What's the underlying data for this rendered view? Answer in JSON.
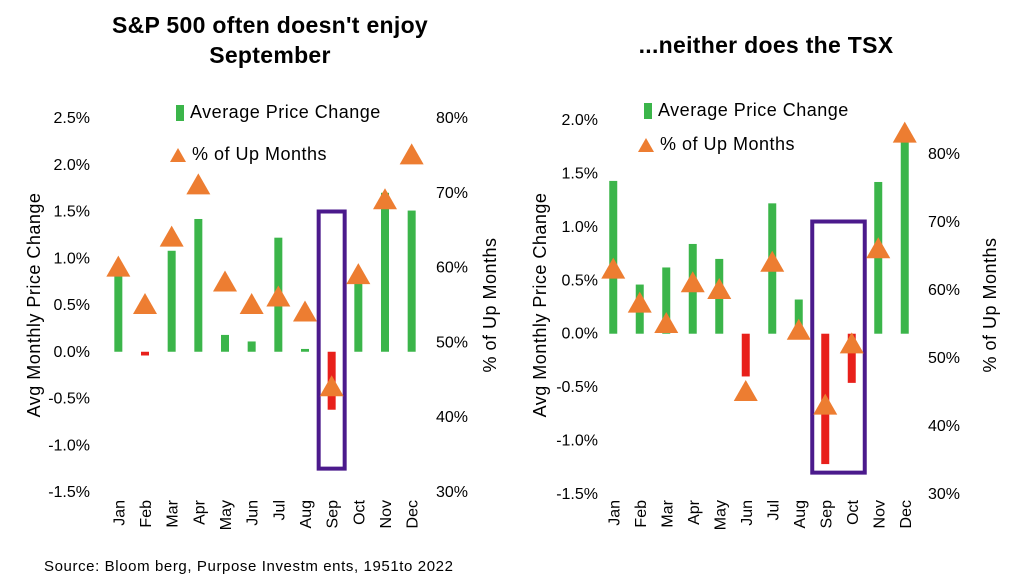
{
  "source": "Source: Bloom berg, Purpose Investm ents, 1951to 2022",
  "colors": {
    "up": "#3BB54A",
    "down": "#E8201B",
    "marker": "#ED7D31",
    "highlight": "#4B1A8C"
  },
  "chart_data": [
    {
      "type": "bar",
      "title": "S&P 500 often doesn't enjoy September",
      "title_lines": [
        "S&P 500 often doesn't enjoy",
        "September"
      ],
      "categories": [
        "Jan",
        "Feb",
        "Mar",
        "Apr",
        "May",
        "Jun",
        "Jul",
        "Aug",
        "Sep",
        "Oct",
        "Nov",
        "Dec"
      ],
      "series": [
        {
          "name": "Average Price Change",
          "axis": "left",
          "kind": "bar",
          "values": [
            0.9,
            -0.04,
            1.08,
            1.42,
            0.18,
            0.11,
            1.22,
            0.03,
            -0.62,
            0.87,
            1.7,
            1.51
          ]
        },
        {
          "name": "% of Up Months",
          "axis": "right",
          "kind": "marker",
          "values": [
            60,
            55,
            64,
            71,
            58,
            55,
            56,
            54,
            44,
            59,
            69,
            75
          ]
        }
      ],
      "ylabel": "Avg Monthly Price Change",
      "y2label": "% of Up Months",
      "ylim": [
        -1.5,
        2.5
      ],
      "yticks": [
        -1.5,
        -1.0,
        -0.5,
        0.0,
        0.5,
        1.0,
        1.5,
        2.0,
        2.5
      ],
      "ytick_labels": [
        "-1.5%",
        "-1.0%",
        "-0.5%",
        "0.0%",
        "0.5%",
        "1.0%",
        "1.5%",
        "2.0%",
        "2.5%"
      ],
      "y2lim": [
        30,
        80
      ],
      "y2ticks": [
        30,
        40,
        50,
        60,
        70,
        80
      ],
      "y2tick_labels": [
        "30%",
        "40%",
        "50%",
        "60%",
        "70%",
        "80%"
      ],
      "highlight_category": "Sep",
      "highlight_range": [
        -1.25,
        1.5
      ]
    },
    {
      "type": "bar",
      "title": "...neither does the TSX",
      "title_lines": [
        "...neither does the TSX"
      ],
      "categories": [
        "Jan",
        "Feb",
        "Mar",
        "Apr",
        "May",
        "Jun",
        "Jul",
        "Aug",
        "Sep",
        "Oct",
        "Nov",
        "Dec"
      ],
      "series": [
        {
          "name": "Average Price Change",
          "axis": "left",
          "kind": "bar",
          "values": [
            1.43,
            0.46,
            0.62,
            0.84,
            0.7,
            -0.4,
            1.22,
            0.32,
            -1.22,
            -0.46,
            1.42,
            1.82
          ]
        },
        {
          "name": "% of Up Months",
          "axis": "right",
          "kind": "marker",
          "values": [
            63,
            58,
            55,
            61,
            60,
            45,
            64,
            54,
            43,
            52,
            66,
            83
          ]
        }
      ],
      "ylabel": "Avg Monthly Price Change",
      "y2label": "% of Up Months",
      "ylim": [
        -1.5,
        2.0
      ],
      "yticks": [
        -1.5,
        -1.0,
        -0.5,
        0.0,
        0.5,
        1.0,
        1.5,
        2.0
      ],
      "ytick_labels": [
        "-1.5%",
        "-1.0%",
        "-0.5%",
        "0.0%",
        "0.5%",
        "1.0%",
        "1.5%",
        "2.0%"
      ],
      "y2lim": [
        30,
        85
      ],
      "y2ticks": [
        30,
        40,
        50,
        60,
        70,
        80
      ],
      "y2tick_labels": [
        "30%",
        "40%",
        "50%",
        "60%",
        "70%",
        "80%"
      ],
      "highlight_category": [
        "Sep",
        "Oct"
      ],
      "highlight_range": [
        -1.3,
        1.05
      ]
    }
  ]
}
